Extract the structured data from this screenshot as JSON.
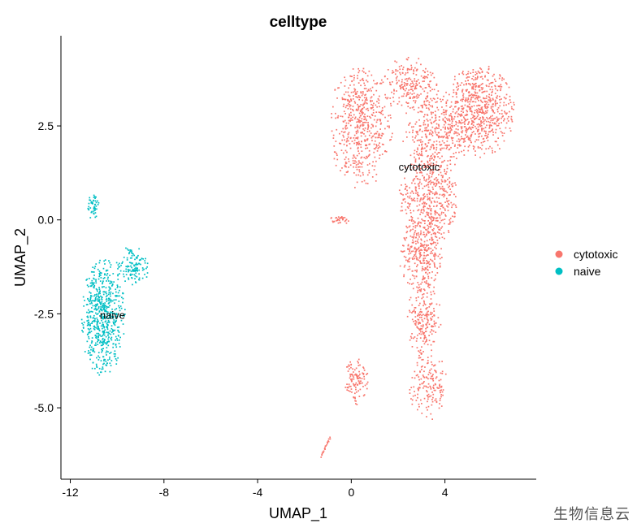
{
  "chart_data": {
    "type": "scatter",
    "title": "celltype",
    "xlabel": "UMAP_1",
    "ylabel": "UMAP_2",
    "xlim": [
      -12.4,
      7.9
    ],
    "ylim": [
      -6.9,
      4.9
    ],
    "xticks": [
      -12,
      -8,
      -4,
      0,
      4
    ],
    "xtick_labels": [
      "-12",
      "-8",
      "-4",
      "0",
      "4"
    ],
    "yticks": [
      2.5,
      0.0,
      -2.5,
      -5.0
    ],
    "ytick_labels": [
      "2.5",
      "0.0",
      "-2.5",
      "-5.0"
    ],
    "grid": false,
    "legend_position": "right",
    "series": [
      {
        "name": "cytotoxic",
        "color": "#F8766D",
        "cluster_label": "cytotoxic",
        "cluster_label_pos": [
          2.9,
          1.4
        ],
        "approx_point_count": 3000,
        "regions": [
          {
            "cx": 0.4,
            "cy": 2.5,
            "rx": 1.3,
            "ry": 1.6,
            "w": 10
          },
          {
            "cx": 2.5,
            "cy": 3.6,
            "rx": 1.2,
            "ry": 0.7,
            "w": 4
          },
          {
            "cx": 5.4,
            "cy": 2.9,
            "rx": 1.5,
            "ry": 1.2,
            "w": 12
          },
          {
            "cx": 3.6,
            "cy": 2.3,
            "rx": 1.4,
            "ry": 1.0,
            "w": 6
          },
          {
            "cx": 3.3,
            "cy": 0.6,
            "rx": 1.2,
            "ry": 1.3,
            "w": 9
          },
          {
            "cx": 3.0,
            "cy": -1.0,
            "rx": 0.9,
            "ry": 0.9,
            "w": 5
          },
          {
            "cx": 3.1,
            "cy": -2.6,
            "rx": 0.7,
            "ry": 1.0,
            "w": 4
          },
          {
            "cx": 3.3,
            "cy": -4.4,
            "rx": 0.8,
            "ry": 0.9,
            "w": 3
          },
          {
            "cx": 0.2,
            "cy": -4.3,
            "rx": 0.5,
            "ry": 0.6,
            "w": 2
          },
          {
            "cx": -0.5,
            "cy": 0.0,
            "rx": 0.4,
            "ry": 0.12,
            "w": 0.6
          }
        ],
        "tail": {
          "from": [
            -1.3,
            -6.3
          ],
          "to": [
            -0.9,
            -5.8
          ],
          "n": 20
        }
      },
      {
        "name": "naive",
        "color": "#00BFC4",
        "cluster_label": "naive",
        "cluster_label_pos": [
          -10.2,
          -2.55
        ],
        "approx_point_count": 800,
        "regions": [
          {
            "cx": -10.6,
            "cy": -2.6,
            "rx": 0.9,
            "ry": 1.5,
            "w": 10
          },
          {
            "cx": -9.3,
            "cy": -1.2,
            "rx": 0.7,
            "ry": 0.5,
            "w": 2
          },
          {
            "cx": -11.0,
            "cy": 0.35,
            "rx": 0.25,
            "ry": 0.35,
            "w": 0.8
          }
        ],
        "tail": {
          "from": [
            -8.9,
            -4.15
          ],
          "to": [
            -8.9,
            -4.15
          ],
          "n": 0
        }
      }
    ]
  },
  "watermark": "生物信息云"
}
